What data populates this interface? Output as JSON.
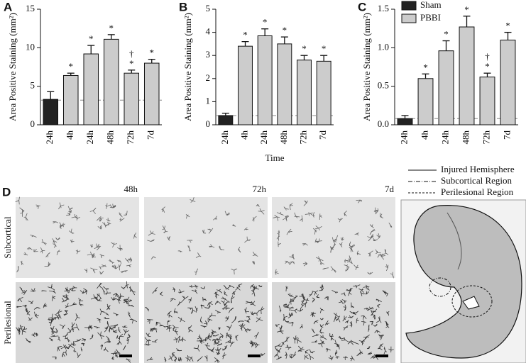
{
  "chart_data": [
    {
      "type": "bar",
      "panel_label": "A",
      "y_label": "Area Positive Staining (mm²)",
      "categories": [
        "24h",
        "4h",
        "24h",
        "48h",
        "72h",
        "7d"
      ],
      "values": [
        3.3,
        6.4,
        9.2,
        11.1,
        6.7,
        8.0
      ],
      "errors": [
        1.0,
        0.3,
        1.1,
        0.6,
        0.4,
        0.5
      ],
      "colors": [
        "#222222",
        "#cccccc",
        "#cccccc",
        "#cccccc",
        "#cccccc",
        "#cccccc"
      ],
      "significance": [
        null,
        "*",
        "*",
        "*",
        "*",
        "*"
      ],
      "vs_timepoint": [
        null,
        null,
        null,
        null,
        "†",
        null
      ],
      "reference_line": 3.2,
      "ylim": [
        0,
        15
      ],
      "yticks": [
        0,
        5,
        10,
        15
      ]
    },
    {
      "type": "bar",
      "panel_label": "B",
      "y_label": "Area Positive Staining (mm²)",
      "x_label": "Time",
      "categories": [
        "24h",
        "4h",
        "24h",
        "48h",
        "72h",
        "7d"
      ],
      "values": [
        0.4,
        3.4,
        3.85,
        3.5,
        2.8,
        2.75
      ],
      "errors": [
        0.1,
        0.2,
        0.3,
        0.3,
        0.2,
        0.25
      ],
      "colors": [
        "#222222",
        "#cccccc",
        "#cccccc",
        "#cccccc",
        "#cccccc",
        "#cccccc"
      ],
      "significance": [
        null,
        "*",
        "*",
        "*",
        "*",
        "*"
      ],
      "vs_timepoint": [
        null,
        null,
        null,
        null,
        null,
        null
      ],
      "reference_line": 0.4,
      "ylim": [
        0,
        5
      ],
      "yticks": [
        0,
        1,
        2,
        3,
        4,
        5
      ]
    },
    {
      "type": "bar",
      "panel_label": "C",
      "y_label": "Area Positive Staining (mm²)",
      "categories": [
        "24h",
        "4h",
        "24h",
        "48h",
        "72h",
        "7d"
      ],
      "values": [
        0.08,
        0.6,
        0.96,
        1.27,
        0.62,
        1.1
      ],
      "errors": [
        0.04,
        0.06,
        0.13,
        0.14,
        0.05,
        0.1
      ],
      "colors": [
        "#222222",
        "#cccccc",
        "#cccccc",
        "#cccccc",
        "#cccccc",
        "#cccccc"
      ],
      "significance": [
        null,
        "*",
        "*",
        "*",
        "*",
        "*"
      ],
      "vs_timepoint": [
        null,
        null,
        null,
        null,
        "†",
        null
      ],
      "reference_line": 0.08,
      "ylim": [
        0,
        1.5
      ],
      "yticks": [
        {
          "value": 0,
          "label": "0.0"
        },
        0.5,
        {
          "value": 1,
          "label": "1.0"
        },
        1.5
      ],
      "legend": [
        {
          "name": "Sham",
          "color": "#222222"
        },
        {
          "name": "PBBI",
          "color": "#cccccc"
        }
      ]
    }
  ],
  "panel_d": {
    "panel_label": "D",
    "columns": [
      "48h",
      "72h",
      "7d"
    ],
    "rows": [
      "Subcortical",
      "Perilesional"
    ],
    "legend": [
      "Injured Hemisphere",
      "Subcortical Region",
      "Perilesional Region"
    ]
  }
}
